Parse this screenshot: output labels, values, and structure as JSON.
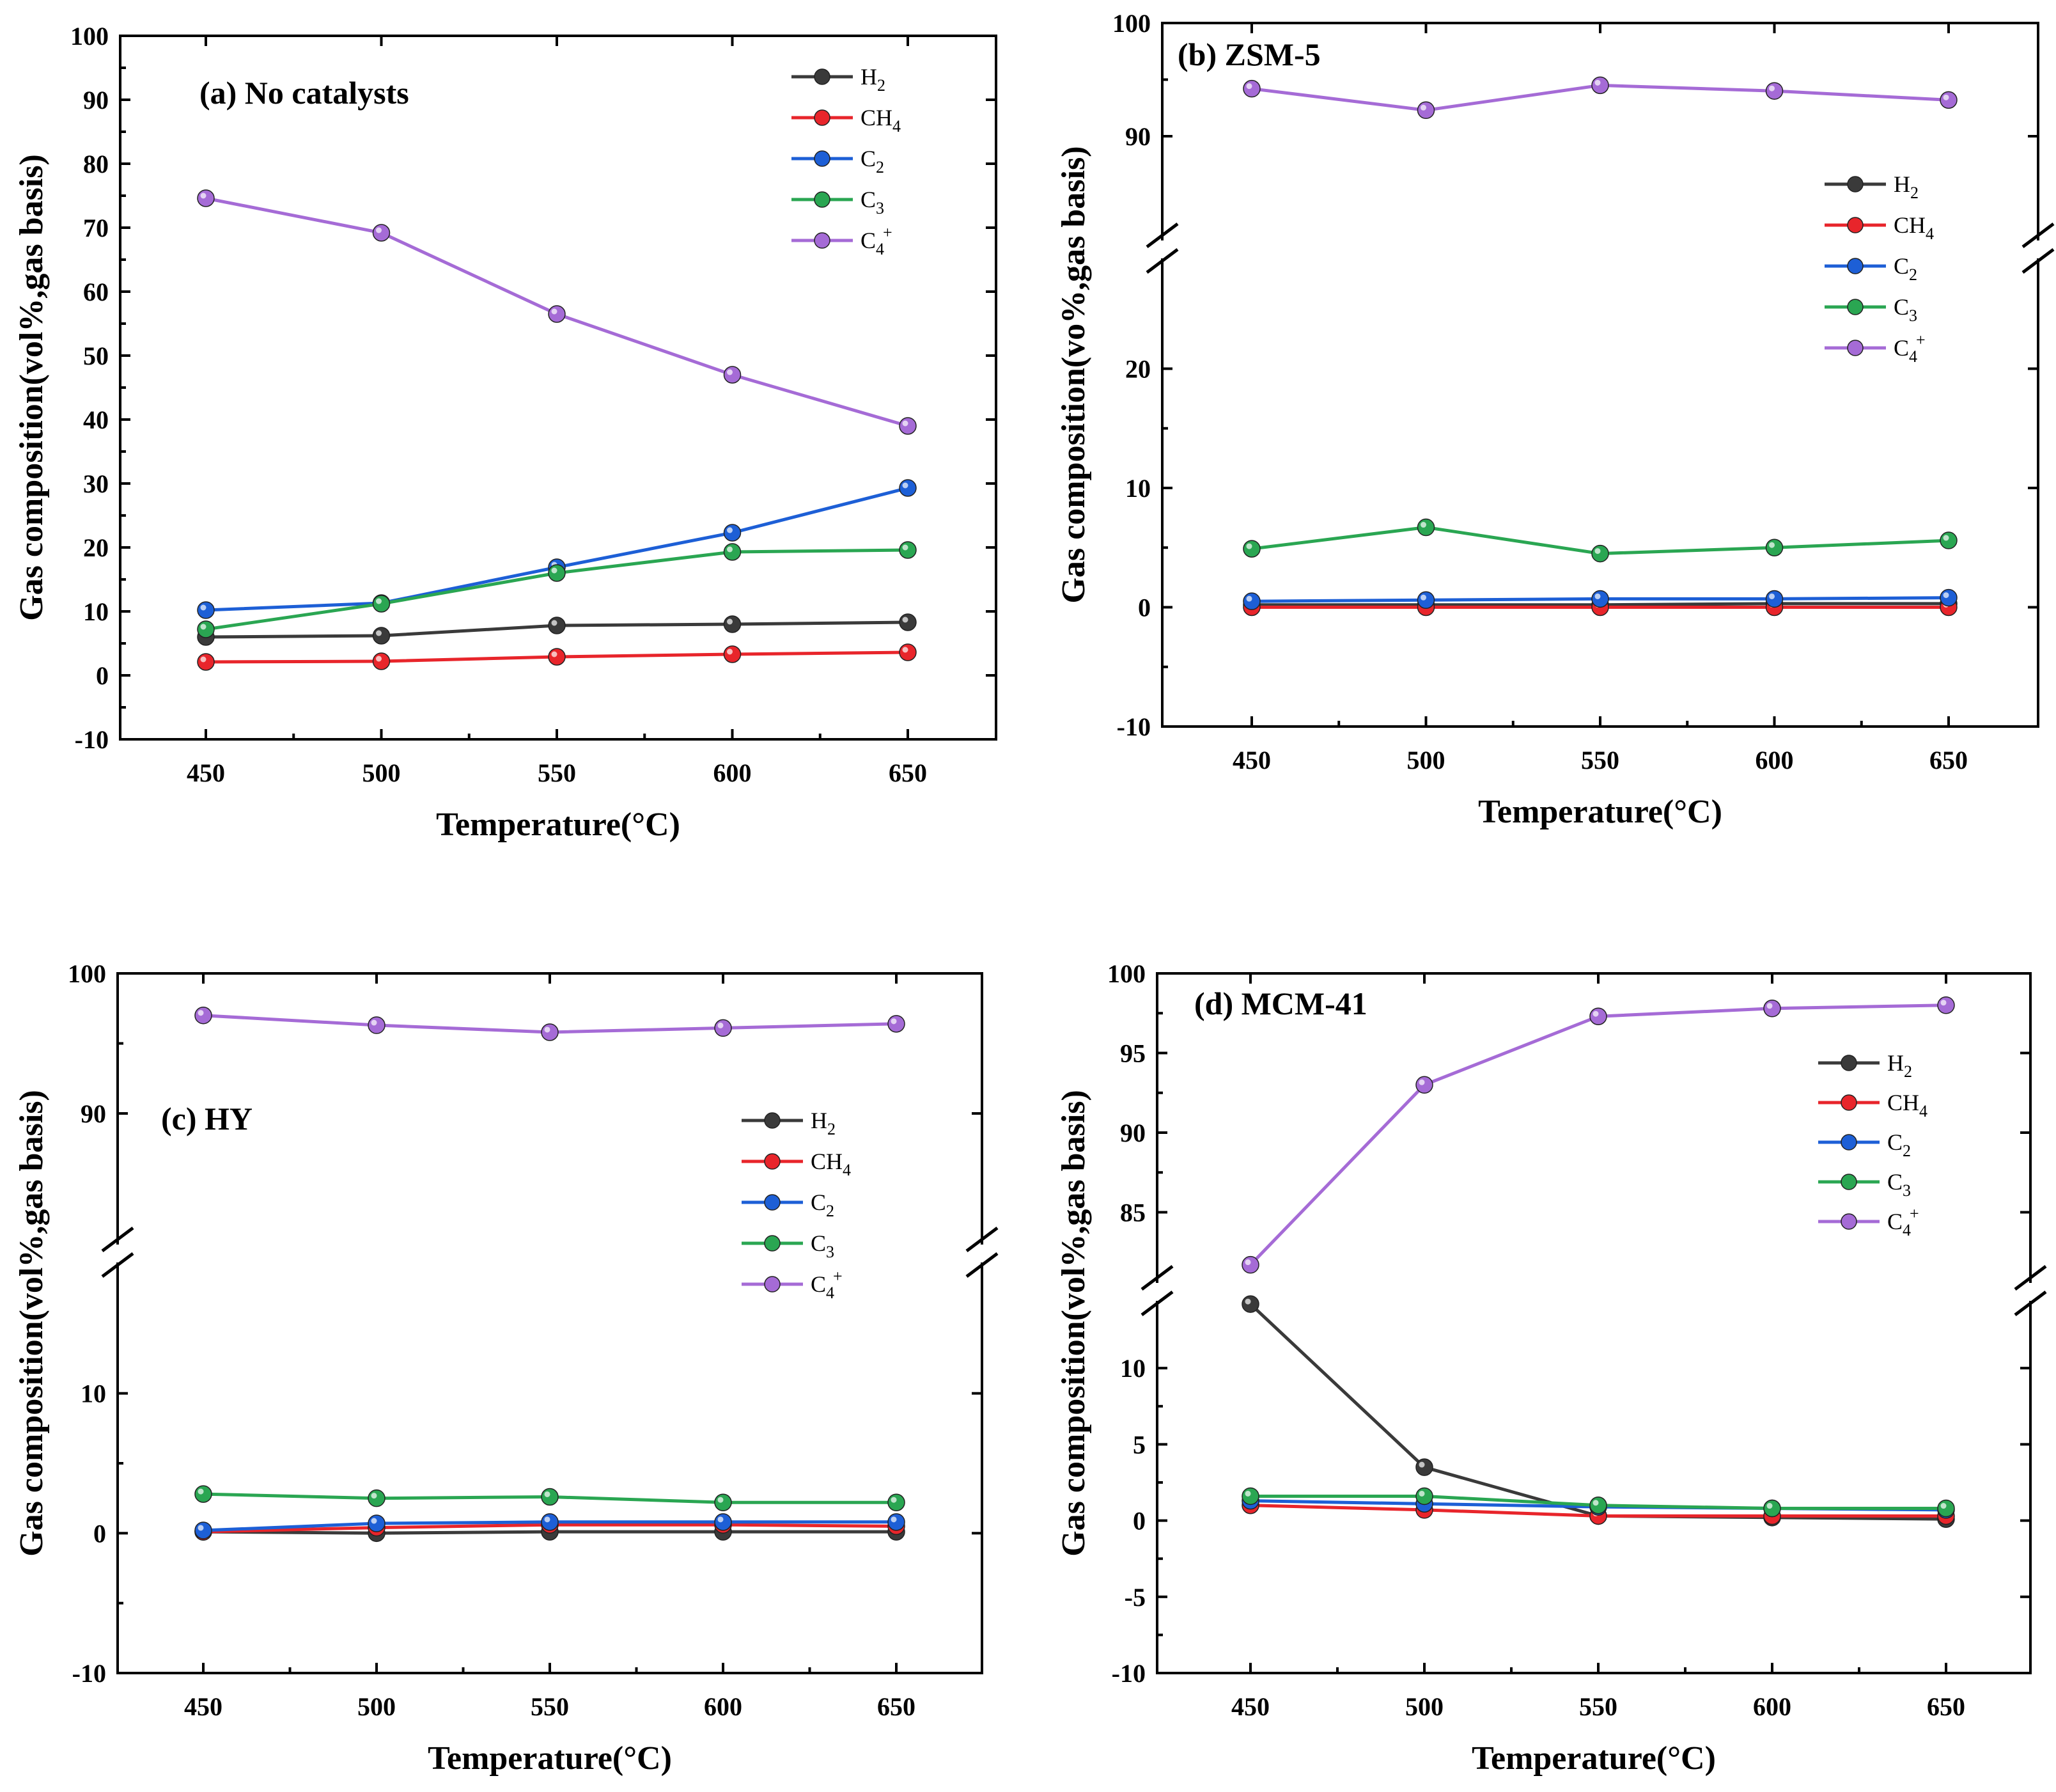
{
  "figure_title": "",
  "chart_data": [
    {
      "id": "a",
      "type": "line",
      "title": "(a) No catalysts",
      "xlabel": "Temperature(°C)",
      "ylabel": "Gas composition(vol%,gas basis)",
      "x": [
        450,
        500,
        550,
        600,
        650
      ],
      "xticks": [
        "450",
        "500",
        "550",
        "600",
        "650"
      ],
      "xlim": [
        425,
        675
      ],
      "ylim": [
        -10,
        100
      ],
      "yticks": [
        "-10",
        "0",
        "10",
        "20",
        "30",
        "40",
        "50",
        "60",
        "70",
        "80",
        "90",
        "100"
      ],
      "broken_axis": false,
      "series": [
        {
          "name": "H2",
          "base": "H",
          "sub": "2",
          "sup": "",
          "color": "#3a3a3a",
          "values": [
            6.0,
            6.2,
            7.8,
            8.0,
            8.3
          ]
        },
        {
          "name": "CH4",
          "base": "CH",
          "sub": "4",
          "sup": "",
          "color": "#e8252b",
          "values": [
            2.1,
            2.2,
            2.9,
            3.3,
            3.6
          ]
        },
        {
          "name": "C2",
          "base": "C",
          "sub": "2",
          "sup": "",
          "color": "#1d5fd6",
          "values": [
            10.2,
            11.3,
            16.9,
            22.3,
            29.3
          ]
        },
        {
          "name": "C3",
          "base": "C",
          "sub": "3",
          "sup": "",
          "color": "#2aa652",
          "values": [
            7.2,
            11.2,
            16.0,
            19.3,
            19.6
          ]
        },
        {
          "name": "C4+",
          "base": "C",
          "sub": "4",
          "sup": "+",
          "color": "#a56bd6",
          "values": [
            74.6,
            69.2,
            56.5,
            47.0,
            39.0
          ]
        }
      ]
    },
    {
      "id": "b",
      "type": "line",
      "title": "(b) ZSM-5",
      "xlabel": "Temperature(°C)",
      "ylabel": "Gas composition(vo%,gas basis)",
      "x": [
        450,
        500,
        550,
        600,
        650
      ],
      "xticks": [
        "450",
        "500",
        "550",
        "600",
        "650"
      ],
      "xlim": [
        425,
        675
      ],
      "broken_axis": true,
      "lower_ylim": [
        -10,
        30
      ],
      "upper_ylim": [
        80,
        100
      ],
      "lower_yticks": [
        "-10",
        "0",
        "10",
        "20"
      ],
      "upper_yticks": [
        "90",
        "100"
      ],
      "series": [
        {
          "name": "H2",
          "base": "H",
          "sub": "2",
          "sup": "",
          "color": "#3a3a3a",
          "values": [
            0.2,
            0.2,
            0.2,
            0.3,
            0.3
          ]
        },
        {
          "name": "CH4",
          "base": "CH",
          "sub": "4",
          "sup": "",
          "color": "#e8252b",
          "values": [
            0.0,
            0.0,
            0.0,
            0.0,
            0.0
          ]
        },
        {
          "name": "C2",
          "base": "C",
          "sub": "2",
          "sup": "",
          "color": "#1d5fd6",
          "values": [
            0.5,
            0.6,
            0.7,
            0.7,
            0.8
          ]
        },
        {
          "name": "C3",
          "base": "C",
          "sub": "3",
          "sup": "",
          "color": "#2aa652",
          "values": [
            4.9,
            6.7,
            4.5,
            5.0,
            5.6
          ]
        },
        {
          "name": "C4+",
          "base": "C",
          "sub": "4",
          "sup": "+",
          "color": "#a56bd6",
          "values": [
            94.2,
            92.3,
            94.5,
            94.0,
            93.2
          ]
        }
      ]
    },
    {
      "id": "c",
      "type": "line",
      "title": "(c) HY",
      "xlabel": "Temperature(°C)",
      "ylabel": "Gas composition(vol%,gas basis)",
      "x": [
        450,
        500,
        550,
        600,
        650
      ],
      "xticks": [
        "450",
        "500",
        "550",
        "600",
        "650"
      ],
      "xlim": [
        425,
        675
      ],
      "broken_axis": true,
      "lower_ylim": [
        -10,
        20
      ],
      "upper_ylim": [
        80,
        100
      ],
      "lower_yticks": [
        "-10",
        "0",
        "10"
      ],
      "upper_yticks": [
        "90",
        "100"
      ],
      "series": [
        {
          "name": "H2",
          "base": "H",
          "sub": "2",
          "sup": "",
          "color": "#3a3a3a",
          "values": [
            0.1,
            0.0,
            0.1,
            0.1,
            0.1
          ]
        },
        {
          "name": "CH4",
          "base": "CH",
          "sub": "4",
          "sup": "",
          "color": "#e8252b",
          "values": [
            0.1,
            0.4,
            0.6,
            0.6,
            0.5
          ]
        },
        {
          "name": "C2",
          "base": "C",
          "sub": "2",
          "sup": "",
          "color": "#1d5fd6",
          "values": [
            0.2,
            0.7,
            0.8,
            0.8,
            0.8
          ]
        },
        {
          "name": "C3",
          "base": "C",
          "sub": "3",
          "sup": "",
          "color": "#2aa652",
          "values": [
            2.8,
            2.5,
            2.6,
            2.2,
            2.2
          ]
        },
        {
          "name": "C4+",
          "base": "C",
          "sub": "4",
          "sup": "+",
          "color": "#a56bd6",
          "values": [
            97.0,
            96.3,
            95.8,
            96.1,
            96.4
          ]
        }
      ]
    },
    {
      "id": "d",
      "type": "line",
      "title": "(d) MCM-41",
      "xlabel": "Temperature(°C)",
      "ylabel": "Gas composition(vol%,gas basis)",
      "x": [
        450,
        500,
        550,
        600,
        650
      ],
      "xticks": [
        "450",
        "500",
        "550",
        "600",
        "650"
      ],
      "xlim": [
        425,
        675
      ],
      "broken_axis": true,
      "lower_ylim": [
        -10,
        15
      ],
      "upper_ylim": [
        80,
        100
      ],
      "lower_yticks": [
        "-10",
        "-5",
        "0",
        "5",
        "10"
      ],
      "upper_yticks": [
        "85",
        "90",
        "95",
        "100"
      ],
      "series": [
        {
          "name": "H2",
          "base": "H",
          "sub": "2",
          "sup": "",
          "color": "#3a3a3a",
          "values": [
            14.2,
            3.5,
            0.3,
            0.2,
            0.1
          ]
        },
        {
          "name": "CH4",
          "base": "CH",
          "sub": "4",
          "sup": "",
          "color": "#e8252b",
          "values": [
            1.0,
            0.7,
            0.3,
            0.3,
            0.3
          ]
        },
        {
          "name": "C2",
          "base": "C",
          "sub": "2",
          "sup": "",
          "color": "#1d5fd6",
          "values": [
            1.3,
            1.1,
            0.9,
            0.8,
            0.7
          ]
        },
        {
          "name": "C3",
          "base": "C",
          "sub": "3",
          "sup": "",
          "color": "#2aa652",
          "values": [
            1.6,
            1.6,
            1.0,
            0.8,
            0.8
          ]
        },
        {
          "name": "C4+",
          "base": "C",
          "sub": "4",
          "sup": "+",
          "color": "#a56bd6",
          "values": [
            81.7,
            93.0,
            97.3,
            97.8,
            98.0
          ]
        }
      ]
    }
  ]
}
